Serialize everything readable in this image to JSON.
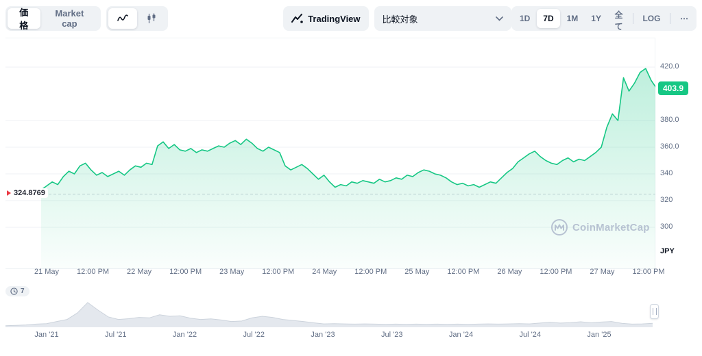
{
  "toolbar": {
    "price_tab": "価格",
    "marketcap_tab": "Market cap",
    "tradingview_label": "TradingView",
    "compare_label": "比較対象",
    "ranges": [
      "1D",
      "7D",
      "1M",
      "1Y",
      "全て"
    ],
    "selected_range": "7D",
    "log_label": "LOG",
    "more_label": "⋯"
  },
  "chart": {
    "current_price_label": "403.9",
    "reference_price_label": "324.8769",
    "currency_label": "JPY",
    "watermark_text": "CoinMarketCap",
    "history_badge_count": "7"
  },
  "colors": {
    "accent_green": "#16c784",
    "marker_red": "#ea3943",
    "grid": "#eff2f5",
    "dashed_reference": "#c9ced8",
    "navigator_fill": "#e4e8ee",
    "navigator_stroke": "#ccd3dc"
  },
  "chart_data": [
    {
      "type": "area",
      "name": "price-7d",
      "unit": "JPY",
      "color": "#16c784",
      "grid": true,
      "legend": "none",
      "ylim": [
        269,
        442
      ],
      "y_tick_labels": [
        "420.0",
        "380.0",
        "360.0",
        "340",
        "320",
        "300"
      ],
      "y_tick_values": [
        420,
        380,
        360,
        340,
        320,
        300
      ],
      "x_ticks": [
        "21 May",
        "12:00 PM",
        "22 May",
        "12:00 PM",
        "23 May",
        "12:00 PM",
        "24 May",
        "12:00 PM",
        "25 May",
        "12:00 PM",
        "26 May",
        "12:00 PM",
        "27 May",
        "12:00 PM"
      ],
      "current": 403.9,
      "previous_close": 324.8769,
      "values": [
        328,
        331,
        334,
        332,
        338,
        342,
        340,
        346,
        348,
        343,
        339,
        341,
        338,
        340,
        342,
        339,
        343,
        346,
        345,
        348,
        347,
        361,
        364,
        359,
        362,
        358,
        357,
        359,
        356,
        358,
        357,
        359,
        361,
        360,
        363,
        365,
        362,
        366,
        363,
        359,
        357,
        360,
        358,
        356,
        346,
        343,
        345,
        347,
        344,
        340,
        336,
        339,
        334,
        330,
        332,
        331,
        334,
        333,
        335,
        334,
        333,
        336,
        334,
        335,
        337,
        336,
        339,
        338,
        341,
        343,
        342,
        340,
        339,
        337,
        334,
        332,
        333,
        331,
        332,
        330,
        332,
        334,
        333,
        337,
        341,
        344,
        349,
        352,
        355,
        357,
        353,
        350,
        348,
        347,
        350,
        352,
        349,
        351,
        350,
        353,
        356,
        360,
        375,
        385,
        380,
        412,
        402,
        408,
        416,
        419,
        410,
        403.9
      ]
    },
    {
      "type": "area",
      "name": "history-navigator",
      "x_ticks": [
        "Jan '21",
        "Jul '21",
        "Jan '22",
        "Jul '22",
        "Jan '23",
        "Jul '23",
        "Jan '24",
        "Jul '24",
        "Jan '25"
      ],
      "ylim": [
        0,
        100
      ],
      "values": [
        6,
        7,
        9,
        12,
        14,
        22,
        30,
        55,
        95,
        66,
        40,
        30,
        33,
        38,
        36,
        48,
        42,
        44,
        35,
        30,
        32,
        28,
        22,
        24,
        36,
        42,
        38,
        30,
        26,
        22,
        17,
        13,
        14,
        13,
        12,
        13,
        12,
        11,
        12,
        11,
        12,
        11,
        12,
        11,
        12,
        11,
        12,
        13,
        12,
        13,
        14,
        13,
        16,
        19,
        16,
        18,
        21,
        17,
        20,
        22,
        15,
        12,
        13,
        15
      ]
    }
  ]
}
